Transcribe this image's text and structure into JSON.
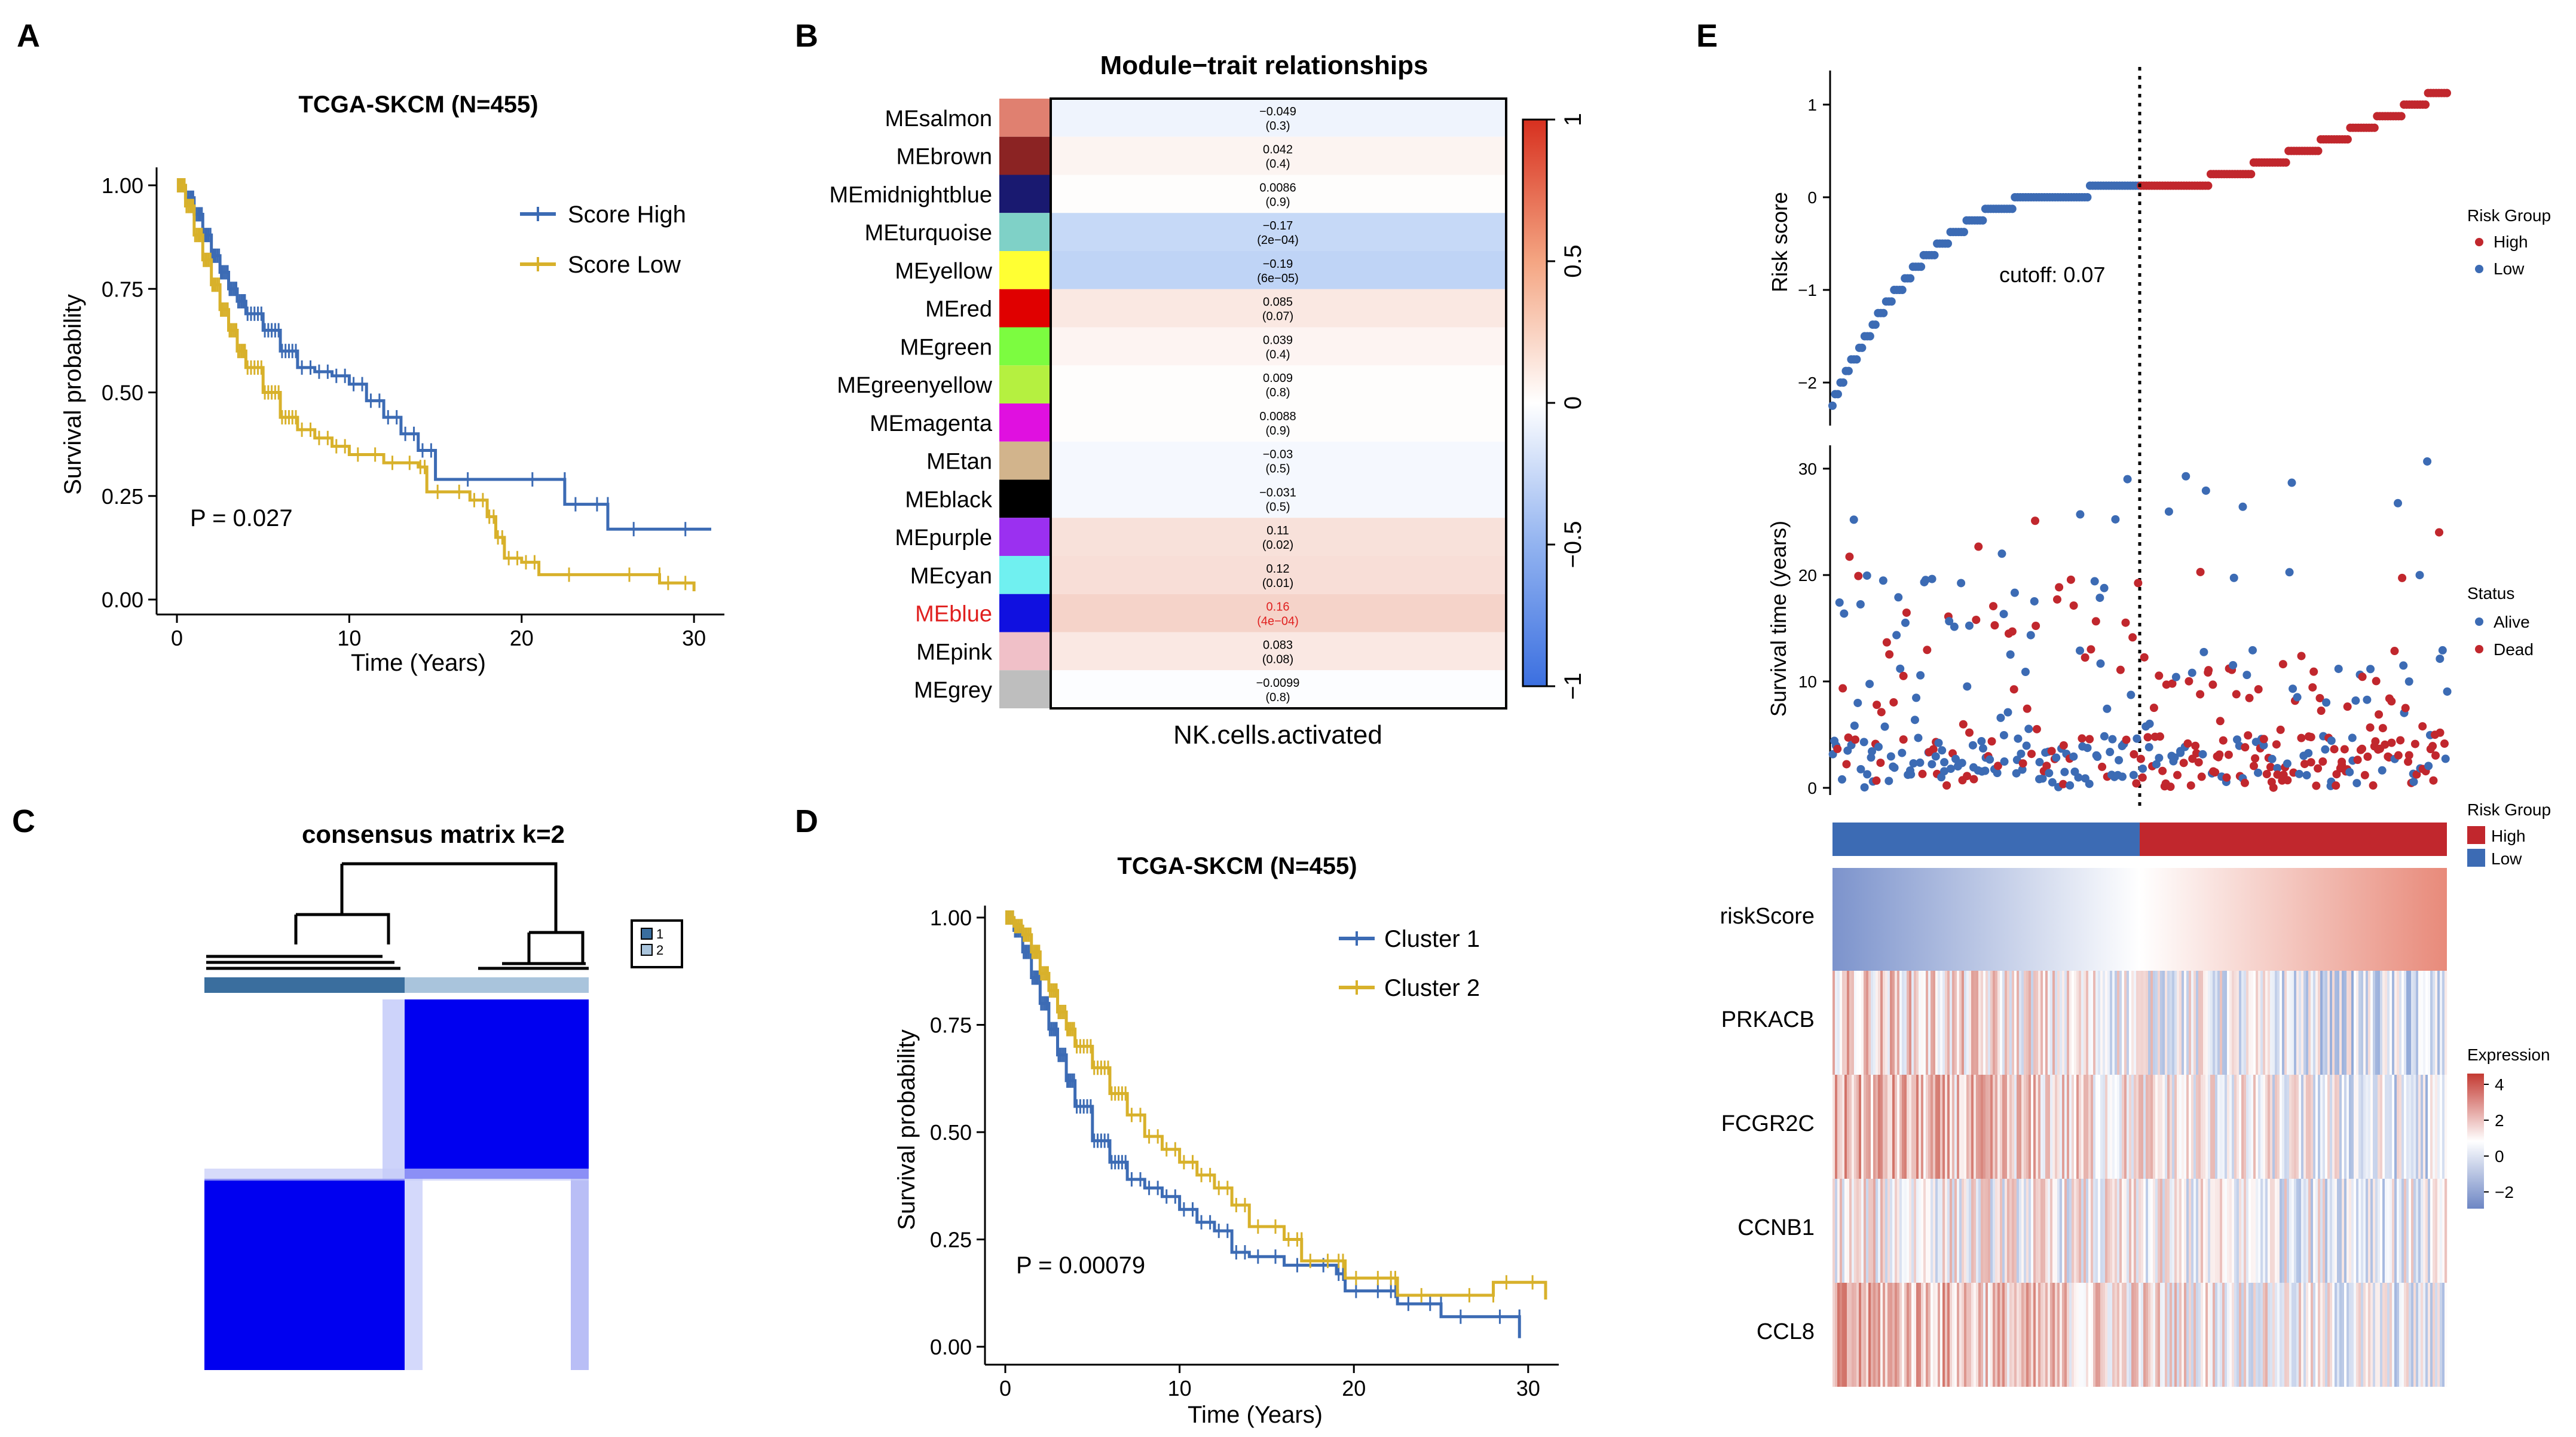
{
  "colors": {
    "high_blue": "#3c6bb4",
    "low_gold": "#d8b12b",
    "risk_red": "#c1272d",
    "risk_blue": "#3c6bb4",
    "consensus_blue": "#0000f0",
    "consensus_light": "#a9c4dc",
    "consensus_dark": "#3a6e9e"
  },
  "panels": {
    "A": "A",
    "B": "B",
    "C": "C",
    "D": "D",
    "E": "E"
  },
  "chart_data": [
    {
      "id": "A",
      "type": "line",
      "subtype": "kaplan-meier",
      "title": "TCGA-SKCM (N=455)",
      "xlabel": "Time (Years)",
      "ylabel": "Survival probability",
      "xlim": [
        0,
        31
      ],
      "ylim": [
        0,
        1
      ],
      "xticks": [
        "0",
        "10",
        "20",
        "30"
      ],
      "yticks": [
        "0.00",
        "0.25",
        "0.50",
        "0.75",
        "1.00"
      ],
      "pvalue": "P = 0.027",
      "legend": [
        "Score High",
        "Score Low"
      ],
      "series": [
        {
          "name": "Score High",
          "color": "#3c6bb4",
          "points": [
            [
              0,
              1
            ],
            [
              0.5,
              0.97
            ],
            [
              1,
              0.93
            ],
            [
              1.5,
              0.88
            ],
            [
              2,
              0.83
            ],
            [
              2.5,
              0.79
            ],
            [
              3,
              0.75
            ],
            [
              3.5,
              0.72
            ],
            [
              4,
              0.69
            ],
            [
              5,
              0.65
            ],
            [
              6,
              0.6
            ],
            [
              7,
              0.56
            ],
            [
              8,
              0.55
            ],
            [
              9,
              0.54
            ],
            [
              10,
              0.52
            ],
            [
              11,
              0.48
            ],
            [
              12,
              0.44
            ],
            [
              13,
              0.4
            ],
            [
              14,
              0.36
            ],
            [
              15,
              0.29
            ],
            [
              22.5,
              0.29
            ],
            [
              22.5,
              0.23
            ],
            [
              25,
              0.23
            ],
            [
              25,
              0.17
            ],
            [
              31,
              0.17
            ]
          ]
        },
        {
          "name": "Score Low",
          "color": "#d8b12b",
          "points": [
            [
              0,
              1
            ],
            [
              0.5,
              0.95
            ],
            [
              1,
              0.88
            ],
            [
              1.5,
              0.82
            ],
            [
              2,
              0.76
            ],
            [
              2.5,
              0.7
            ],
            [
              3,
              0.65
            ],
            [
              3.5,
              0.6
            ],
            [
              4,
              0.56
            ],
            [
              5,
              0.5
            ],
            [
              6,
              0.44
            ],
            [
              7,
              0.41
            ],
            [
              8,
              0.39
            ],
            [
              9,
              0.37
            ],
            [
              10,
              0.35
            ],
            [
              12,
              0.33
            ],
            [
              14,
              0.32
            ],
            [
              14.5,
              0.26
            ],
            [
              17,
              0.24
            ],
            [
              18,
              0.2
            ],
            [
              18.5,
              0.15
            ],
            [
              19,
              0.1
            ],
            [
              20,
              0.09
            ],
            [
              21,
              0.06
            ],
            [
              28,
              0.06
            ],
            [
              28,
              0.04
            ],
            [
              30,
              0.02
            ]
          ]
        }
      ]
    },
    {
      "id": "B",
      "type": "heatmap",
      "title": "Module−trait relationships",
      "xlabel": "NK.cells.activated",
      "colorbar_ticks": [
        "1",
        "0.5",
        "0",
        "−0.5",
        "−1"
      ],
      "rows": [
        {
          "module": "MEsalmon",
          "color": "#e08070",
          "r": -0.049,
          "r_label": "−0.049",
          "p_label": "(0.3)"
        },
        {
          "module": "MEbrown",
          "color": "#8b2323",
          "r": 0.042,
          "r_label": "0.042",
          "p_label": "(0.4)"
        },
        {
          "module": "MEmidnightblue",
          "color": "#191970",
          "r": 0.0086,
          "r_label": "0.0086",
          "p_label": "(0.9)"
        },
        {
          "module": "MEturquoise",
          "color": "#7fd1c7",
          "r": -0.17,
          "r_label": "−0.17",
          "p_label": "(2e−04)"
        },
        {
          "module": "MEyellow",
          "color": "#ffff33",
          "r": -0.19,
          "r_label": "−0.19",
          "p_label": "(6e−05)"
        },
        {
          "module": "MEred",
          "color": "#e00000",
          "r": 0.085,
          "r_label": "0.085",
          "p_label": "(0.07)"
        },
        {
          "module": "MEgreen",
          "color": "#7cfc40",
          "r": 0.039,
          "r_label": "0.039",
          "p_label": "(0.4)"
        },
        {
          "module": "MEgreenyellow",
          "color": "#b5f040",
          "r": 0.009,
          "r_label": "0.009",
          "p_label": "(0.8)"
        },
        {
          "module": "MEmagenta",
          "color": "#e010e0",
          "r": 0.0088,
          "r_label": "0.0088",
          "p_label": "(0.9)"
        },
        {
          "module": "MEtan",
          "color": "#d2b48c",
          "r": -0.03,
          "r_label": "−0.03",
          "p_label": "(0.5)"
        },
        {
          "module": "MEblack",
          "color": "#000000",
          "r": -0.031,
          "r_label": "−0.031",
          "p_label": "(0.5)"
        },
        {
          "module": "MEpurple",
          "color": "#9b30f0",
          "r": 0.11,
          "r_label": "0.11",
          "p_label": "(0.02)"
        },
        {
          "module": "MEcyan",
          "color": "#70f0f0",
          "r": 0.12,
          "r_label": "0.12",
          "p_label": "(0.01)"
        },
        {
          "module": "MEblue",
          "color": "#1010e0",
          "r": 0.16,
          "r_label": "0.16",
          "p_label": "(4e−04)",
          "highlight": true
        },
        {
          "module": "MEpink",
          "color": "#f0c0c8",
          "r": 0.083,
          "r_label": "0.083",
          "p_label": "(0.08)"
        },
        {
          "module": "MEgrey",
          "color": "#bebebe",
          "r": -0.0099,
          "r_label": "−0.0099",
          "p_label": "(0.8)"
        }
      ]
    },
    {
      "id": "C",
      "type": "heatmap",
      "subtype": "consensus-matrix",
      "title": "consensus matrix k=2",
      "legend": [
        "1",
        "2"
      ],
      "clusters": [
        {
          "name": "1",
          "fraction": 0.52
        },
        {
          "name": "2",
          "fraction": 0.48
        }
      ]
    },
    {
      "id": "D",
      "type": "line",
      "subtype": "kaplan-meier",
      "title": "TCGA-SKCM (N=455)",
      "xlabel": "Time (Years)",
      "ylabel": "Survival probability",
      "xlim": [
        0,
        31
      ],
      "ylim": [
        0,
        1
      ],
      "xticks": [
        "0",
        "10",
        "20",
        "30"
      ],
      "yticks": [
        "0.00",
        "0.25",
        "0.50",
        "0.75",
        "1.00"
      ],
      "pvalue": "P = 0.00079",
      "legend": [
        "Cluster 1",
        "Cluster 2"
      ],
      "series": [
        {
          "name": "Cluster 1",
          "color": "#3c6bb4",
          "points": [
            [
              0,
              1
            ],
            [
              0.5,
              0.97
            ],
            [
              1,
              0.92
            ],
            [
              1.5,
              0.86
            ],
            [
              2,
              0.8
            ],
            [
              2.5,
              0.74
            ],
            [
              3,
              0.68
            ],
            [
              3.5,
              0.62
            ],
            [
              4,
              0.56
            ],
            [
              5,
              0.48
            ],
            [
              6,
              0.43
            ],
            [
              7,
              0.39
            ],
            [
              8,
              0.37
            ],
            [
              9,
              0.35
            ],
            [
              10,
              0.32
            ],
            [
              11,
              0.29
            ],
            [
              12,
              0.27
            ],
            [
              13,
              0.22
            ],
            [
              14,
              0.21
            ],
            [
              16,
              0.19
            ],
            [
              19,
              0.17
            ],
            [
              19.5,
              0.13
            ],
            [
              22,
              0.13
            ],
            [
              22.5,
              0.1
            ],
            [
              25,
              0.1
            ],
            [
              25,
              0.07
            ],
            [
              29.5,
              0.07
            ],
            [
              29.5,
              0.02
            ]
          ]
        },
        {
          "name": "Cluster 2",
          "color": "#d8b12b",
          "points": [
            [
              0,
              1
            ],
            [
              0.5,
              0.98
            ],
            [
              1,
              0.96
            ],
            [
              1.5,
              0.92
            ],
            [
              2,
              0.87
            ],
            [
              2.5,
              0.83
            ],
            [
              3,
              0.78
            ],
            [
              3.5,
              0.74
            ],
            [
              4,
              0.7
            ],
            [
              5,
              0.65
            ],
            [
              6,
              0.59
            ],
            [
              7,
              0.54
            ],
            [
              8,
              0.49
            ],
            [
              9,
              0.46
            ],
            [
              10,
              0.43
            ],
            [
              11,
              0.4
            ],
            [
              12,
              0.37
            ],
            [
              13,
              0.33
            ],
            [
              14,
              0.28
            ],
            [
              16,
              0.25
            ],
            [
              17,
              0.25
            ],
            [
              17,
              0.2
            ],
            [
              19,
              0.2
            ],
            [
              19.5,
              0.16
            ],
            [
              22,
              0.16
            ],
            [
              22.5,
              0.12
            ],
            [
              28,
              0.12
            ],
            [
              28,
              0.15
            ],
            [
              31,
              0.11
            ]
          ]
        }
      ]
    },
    {
      "id": "E",
      "type": "scatter",
      "subtype": "risk-score-panel",
      "cutoff_label": "cutoff: 0.07",
      "cutoff": 0.07,
      "risk_ylabel": "Risk score",
      "risk_yticks": [
        "1",
        "0",
        "−1",
        "−2"
      ],
      "survival_ylabel": "Survival time (years)",
      "survival_yticks": [
        "30",
        "20",
        "10",
        "0"
      ],
      "risk_legend_title": "Risk Group",
      "risk_legend": [
        "High",
        "Low"
      ],
      "status_legend_title": "Status",
      "status_legend": [
        "Alive",
        "Dead"
      ],
      "heat_legend_title": "Risk Group",
      "heat_legend": [
        "High",
        "Low"
      ],
      "expression_title": "Expression",
      "expression_ticks": [
        "4",
        "2",
        "0",
        "−2"
      ],
      "heatmap_rows": [
        "riskScore",
        "PRKACB",
        "FCGR2C",
        "CCNB1",
        "CCL8"
      ],
      "n_samples": 455,
      "low_fraction": 0.5
    }
  ]
}
